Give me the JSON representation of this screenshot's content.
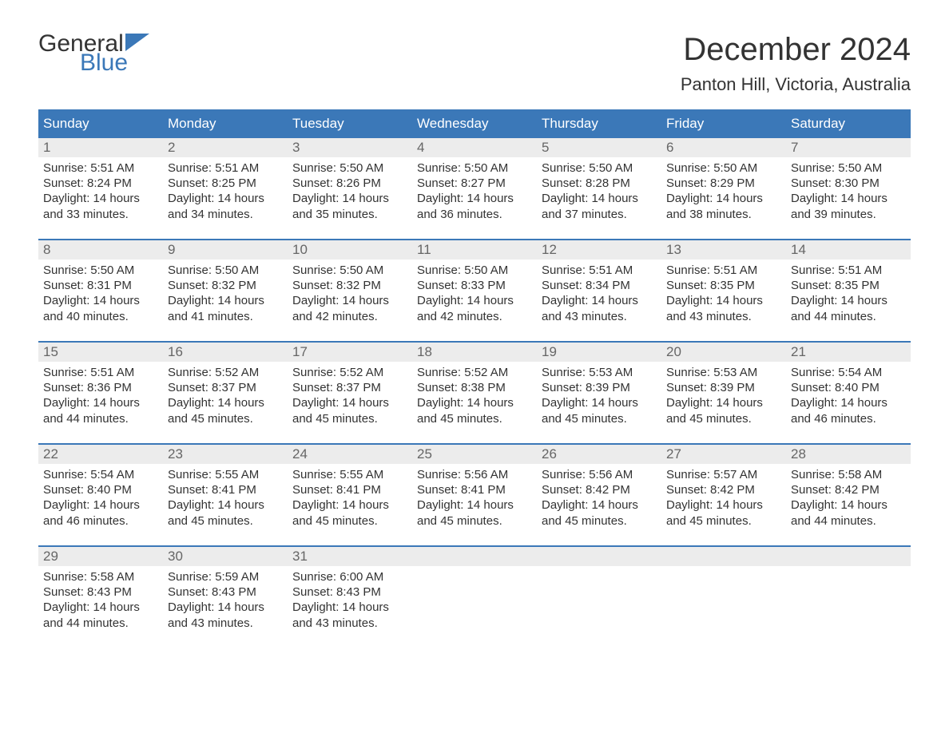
{
  "logo": {
    "text_general": "General",
    "text_blue": "Blue",
    "icon_color": "#3b78b8"
  },
  "title": "December 2024",
  "location": "Panton Hill, Victoria, Australia",
  "colors": {
    "header_bg": "#3b78b8",
    "header_text": "#ffffff",
    "daynum_bg": "#ececec",
    "daynum_text": "#666666",
    "body_text": "#333333",
    "week_border": "#3b78b8"
  },
  "typography": {
    "title_fontsize": 40,
    "location_fontsize": 22,
    "dayheader_fontsize": 17,
    "daynum_fontsize": 17,
    "daydata_fontsize": 15,
    "font_family": "Arial"
  },
  "day_names": [
    "Sunday",
    "Monday",
    "Tuesday",
    "Wednesday",
    "Thursday",
    "Friday",
    "Saturday"
  ],
  "weeks": [
    [
      {
        "n": "1",
        "sunrise": "5:51 AM",
        "sunset": "8:24 PM",
        "daylight": "14 hours and 33 minutes."
      },
      {
        "n": "2",
        "sunrise": "5:51 AM",
        "sunset": "8:25 PM",
        "daylight": "14 hours and 34 minutes."
      },
      {
        "n": "3",
        "sunrise": "5:50 AM",
        "sunset": "8:26 PM",
        "daylight": "14 hours and 35 minutes."
      },
      {
        "n": "4",
        "sunrise": "5:50 AM",
        "sunset": "8:27 PM",
        "daylight": "14 hours and 36 minutes."
      },
      {
        "n": "5",
        "sunrise": "5:50 AM",
        "sunset": "8:28 PM",
        "daylight": "14 hours and 37 minutes."
      },
      {
        "n": "6",
        "sunrise": "5:50 AM",
        "sunset": "8:29 PM",
        "daylight": "14 hours and 38 minutes."
      },
      {
        "n": "7",
        "sunrise": "5:50 AM",
        "sunset": "8:30 PM",
        "daylight": "14 hours and 39 minutes."
      }
    ],
    [
      {
        "n": "8",
        "sunrise": "5:50 AM",
        "sunset": "8:31 PM",
        "daylight": "14 hours and 40 minutes."
      },
      {
        "n": "9",
        "sunrise": "5:50 AM",
        "sunset": "8:32 PM",
        "daylight": "14 hours and 41 minutes."
      },
      {
        "n": "10",
        "sunrise": "5:50 AM",
        "sunset": "8:32 PM",
        "daylight": "14 hours and 42 minutes."
      },
      {
        "n": "11",
        "sunrise": "5:50 AM",
        "sunset": "8:33 PM",
        "daylight": "14 hours and 42 minutes."
      },
      {
        "n": "12",
        "sunrise": "5:51 AM",
        "sunset": "8:34 PM",
        "daylight": "14 hours and 43 minutes."
      },
      {
        "n": "13",
        "sunrise": "5:51 AM",
        "sunset": "8:35 PM",
        "daylight": "14 hours and 43 minutes."
      },
      {
        "n": "14",
        "sunrise": "5:51 AM",
        "sunset": "8:35 PM",
        "daylight": "14 hours and 44 minutes."
      }
    ],
    [
      {
        "n": "15",
        "sunrise": "5:51 AM",
        "sunset": "8:36 PM",
        "daylight": "14 hours and 44 minutes."
      },
      {
        "n": "16",
        "sunrise": "5:52 AM",
        "sunset": "8:37 PM",
        "daylight": "14 hours and 45 minutes."
      },
      {
        "n": "17",
        "sunrise": "5:52 AM",
        "sunset": "8:37 PM",
        "daylight": "14 hours and 45 minutes."
      },
      {
        "n": "18",
        "sunrise": "5:52 AM",
        "sunset": "8:38 PM",
        "daylight": "14 hours and 45 minutes."
      },
      {
        "n": "19",
        "sunrise": "5:53 AM",
        "sunset": "8:39 PM",
        "daylight": "14 hours and 45 minutes."
      },
      {
        "n": "20",
        "sunrise": "5:53 AM",
        "sunset": "8:39 PM",
        "daylight": "14 hours and 45 minutes."
      },
      {
        "n": "21",
        "sunrise": "5:54 AM",
        "sunset": "8:40 PM",
        "daylight": "14 hours and 46 minutes."
      }
    ],
    [
      {
        "n": "22",
        "sunrise": "5:54 AM",
        "sunset": "8:40 PM",
        "daylight": "14 hours and 46 minutes."
      },
      {
        "n": "23",
        "sunrise": "5:55 AM",
        "sunset": "8:41 PM",
        "daylight": "14 hours and 45 minutes."
      },
      {
        "n": "24",
        "sunrise": "5:55 AM",
        "sunset": "8:41 PM",
        "daylight": "14 hours and 45 minutes."
      },
      {
        "n": "25",
        "sunrise": "5:56 AM",
        "sunset": "8:41 PM",
        "daylight": "14 hours and 45 minutes."
      },
      {
        "n": "26",
        "sunrise": "5:56 AM",
        "sunset": "8:42 PM",
        "daylight": "14 hours and 45 minutes."
      },
      {
        "n": "27",
        "sunrise": "5:57 AM",
        "sunset": "8:42 PM",
        "daylight": "14 hours and 45 minutes."
      },
      {
        "n": "28",
        "sunrise": "5:58 AM",
        "sunset": "8:42 PM",
        "daylight": "14 hours and 44 minutes."
      }
    ],
    [
      {
        "n": "29",
        "sunrise": "5:58 AM",
        "sunset": "8:43 PM",
        "daylight": "14 hours and 44 minutes."
      },
      {
        "n": "30",
        "sunrise": "5:59 AM",
        "sunset": "8:43 PM",
        "daylight": "14 hours and 43 minutes."
      },
      {
        "n": "31",
        "sunrise": "6:00 AM",
        "sunset": "8:43 PM",
        "daylight": "14 hours and 43 minutes."
      },
      null,
      null,
      null,
      null
    ]
  ],
  "labels": {
    "sunrise": "Sunrise: ",
    "sunset": "Sunset: ",
    "daylight": "Daylight: "
  }
}
